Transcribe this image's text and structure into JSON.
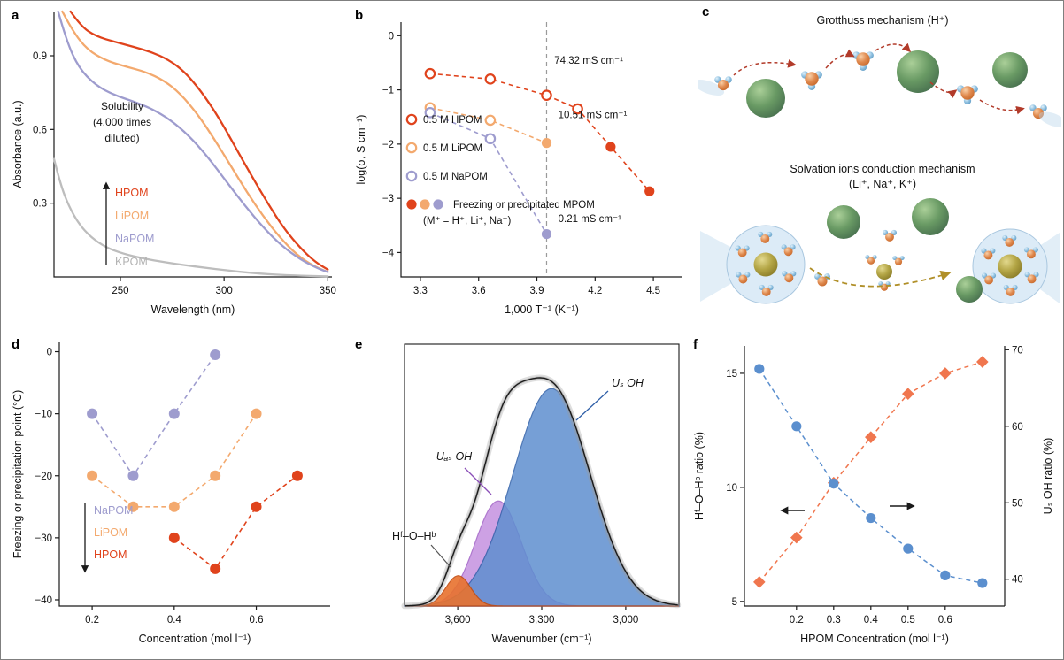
{
  "figure": {
    "background": "#ffffff",
    "border_color": "#7f7f7f"
  },
  "panels": {
    "a": {
      "label": "a"
    },
    "b": {
      "label": "b"
    },
    "c": {
      "label": "c",
      "grotthuss_title": "Grotthuss mechanism (H⁺)",
      "solvation_title_line1": "Solvation ions conduction mechanism",
      "solvation_title_line2": "(Li⁺, Na⁺, K⁺)"
    },
    "d": {
      "label": "d"
    },
    "e": {
      "label": "e"
    },
    "f": {
      "label": "f"
    }
  },
  "chart_data": [
    {
      "id": "a",
      "type": "line",
      "xlabel": "Wavelength (nm)",
      "ylabel": "Absorbance (a.u.)",
      "xlim": [
        218,
        352
      ],
      "ylim": [
        0,
        1.08
      ],
      "xticks": [
        250,
        300,
        350
      ],
      "xtick_labels": [
        "250",
        "300",
        "350"
      ],
      "yticks": [
        0.3,
        0.6,
        0.9
      ],
      "ytick_labels": [
        "0.3",
        "0.6",
        "0.9"
      ],
      "note_lines": [
        "Solubility",
        "(4,000 times",
        "diluted)"
      ],
      "legend_labels": [
        {
          "text": "HPOM",
          "color": "#e0431c"
        },
        {
          "text": "LiPOM",
          "color": "#f3a96e"
        },
        {
          "text": "NaPOM",
          "color": "#9e9cce"
        },
        {
          "text": "KPOM",
          "color": "#b3b3b3"
        }
      ],
      "series": [
        {
          "name": "HPOM",
          "color": "#e0431c",
          "points": [
            [
              226,
              1.08
            ],
            [
              231,
              1.02
            ],
            [
              238,
              0.98
            ],
            [
              248,
              0.955
            ],
            [
              257,
              0.935
            ],
            [
              265,
              0.915
            ],
            [
              273,
              0.885
            ],
            [
              281,
              0.835
            ],
            [
              289,
              0.755
            ],
            [
              297,
              0.655
            ],
            [
              305,
              0.535
            ],
            [
              313,
              0.415
            ],
            [
              321,
              0.3
            ],
            [
              329,
              0.195
            ],
            [
              337,
              0.115
            ],
            [
              344,
              0.06
            ],
            [
              350,
              0.03
            ]
          ]
        },
        {
          "name": "LiPOM",
          "color": "#f3a96e",
          "points": [
            [
              222,
              1.08
            ],
            [
              227,
              1.0
            ],
            [
              234,
              0.925
            ],
            [
              243,
              0.88
            ],
            [
              253,
              0.855
            ],
            [
              262,
              0.835
            ],
            [
              271,
              0.8
            ],
            [
              279,
              0.745
            ],
            [
              287,
              0.665
            ],
            [
              295,
              0.565
            ],
            [
              303,
              0.455
            ],
            [
              311,
              0.345
            ],
            [
              319,
              0.245
            ],
            [
              327,
              0.16
            ],
            [
              335,
              0.09
            ],
            [
              343,
              0.045
            ],
            [
              350,
              0.02
            ]
          ]
        },
        {
          "name": "NaPOM",
          "color": "#9e9cce",
          "points": [
            [
              220,
              1.08
            ],
            [
              224,
              0.96
            ],
            [
              230,
              0.85
            ],
            [
              238,
              0.78
            ],
            [
              247,
              0.74
            ],
            [
              256,
              0.715
            ],
            [
              265,
              0.685
            ],
            [
              274,
              0.64
            ],
            [
              283,
              0.575
            ],
            [
              292,
              0.49
            ],
            [
              301,
              0.39
            ],
            [
              310,
              0.29
            ],
            [
              319,
              0.2
            ],
            [
              328,
              0.125
            ],
            [
              337,
              0.07
            ],
            [
              345,
              0.035
            ],
            [
              350,
              0.02
            ]
          ]
        },
        {
          "name": "KPOM",
          "color": "#bdbdbd",
          "points": [
            [
              218,
              0.48
            ],
            [
              221,
              0.38
            ],
            [
              225,
              0.29
            ],
            [
              230,
              0.215
            ],
            [
              236,
              0.16
            ],
            [
              243,
              0.12
            ],
            [
              251,
              0.095
            ],
            [
              261,
              0.075
            ],
            [
              271,
              0.06
            ],
            [
              281,
              0.048
            ],
            [
              291,
              0.037
            ],
            [
              301,
              0.027
            ],
            [
              311,
              0.018
            ],
            [
              321,
              0.011
            ],
            [
              333,
              0.006
            ],
            [
              350,
              0.002
            ]
          ]
        }
      ]
    },
    {
      "id": "b",
      "type": "scatter",
      "xlabel": "1,000 T⁻¹ (K⁻¹)",
      "ylabel": "log(σ, S cm⁻¹)",
      "xlim": [
        3.2,
        4.65
      ],
      "ylim": [
        -4.45,
        0.25
      ],
      "xticks": [
        3.3,
        3.6,
        3.9,
        4.2,
        4.5
      ],
      "xtick_labels": [
        "3.3",
        "3.6",
        "3.9",
        "4.2",
        "4.5"
      ],
      "yticks": [
        0,
        -1,
        -2,
        -3,
        -4
      ],
      "ytick_labels": [
        "0",
        "−1",
        "−2",
        "−3",
        "−4"
      ],
      "vline_x": 3.95,
      "series": [
        {
          "name": "0.5 M HPOM",
          "color": "#e0431c",
          "open_points": [
            [
              3.35,
              -0.7
            ],
            [
              3.66,
              -0.8
            ],
            [
              3.95,
              -1.1
            ],
            [
              4.11,
              -1.35
            ]
          ],
          "filled_points": [
            [
              4.28,
              -2.05
            ],
            [
              4.48,
              -2.87
            ]
          ]
        },
        {
          "name": "0.5 M LiPOM",
          "color": "#f3a96e",
          "open_points": [
            [
              3.35,
              -1.33
            ],
            [
              3.66,
              -1.56
            ]
          ],
          "filled_points": [
            [
              3.95,
              -1.98
            ]
          ]
        },
        {
          "name": "0.5 M NaPOM",
          "color": "#9e9cce",
          "open_points": [
            [
              3.35,
              -1.42
            ],
            [
              3.66,
              -1.9
            ]
          ],
          "filled_points": [
            [
              3.95,
              -3.66
            ]
          ]
        }
      ],
      "annotations": [
        {
          "text": "74.32 mS cm⁻¹",
          "x": 3.99,
          "y": -0.52
        },
        {
          "text": "10.51 mS cm⁻¹",
          "x": 4.01,
          "y": -1.52
        },
        {
          "text": "0.21 mS cm⁻¹",
          "x": 4.01,
          "y": -3.44
        }
      ],
      "legend": {
        "open_items": [
          {
            "text": "0.5 M HPOM",
            "color": "#e0431c"
          },
          {
            "text": "0.5 M LiPOM",
            "color": "#f3a96e"
          },
          {
            "text": "0.5 M NaPOM",
            "color": "#9e9cce"
          }
        ],
        "filled_colors": [
          "#e0431c",
          "#f3a96e",
          "#9e9cce"
        ],
        "filled_text": "Freezing or precipitated MPOM",
        "filled_subtext": "(M⁺ = H⁺, Li⁺, Na⁺)"
      }
    },
    {
      "id": "d",
      "type": "scatter",
      "xlabel": "Concentration (mol l⁻¹)",
      "ylabel": "Freezing or precipitation point (°C)",
      "xlim": [
        0.12,
        0.78
      ],
      "ylim": [
        -41,
        1.5
      ],
      "xticks": [
        0.2,
        0.4,
        0.6
      ],
      "xtick_labels": [
        "0.2",
        "0.4",
        "0.6"
      ],
      "yticks": [
        0,
        -10,
        -20,
        -30,
        -40
      ],
      "ytick_labels": [
        "0",
        "−10",
        "−20",
        "−30",
        "−40"
      ],
      "legend_labels": [
        {
          "text": "NaPOM",
          "color": "#9e9cce"
        },
        {
          "text": "LiPOM",
          "color": "#f3a96e"
        },
        {
          "text": "HPOM",
          "color": "#e0431c"
        }
      ],
      "series": [
        {
          "name": "NaPOM",
          "color": "#9e9cce",
          "points": [
            [
              0.2,
              -10
            ],
            [
              0.3,
              -20
            ],
            [
              0.4,
              -10
            ],
            [
              0.5,
              -0.5
            ]
          ]
        },
        {
          "name": "LiPOM",
          "color": "#f3a96e",
          "points": [
            [
              0.2,
              -20
            ],
            [
              0.3,
              -25
            ],
            [
              0.4,
              -25
            ],
            [
              0.5,
              -20
            ],
            [
              0.6,
              -10
            ]
          ]
        },
        {
          "name": "HPOM",
          "color": "#e0431c",
          "points": [
            [
              0.4,
              -30
            ],
            [
              0.5,
              -35
            ],
            [
              0.6,
              -25
            ],
            [
              0.7,
              -20
            ]
          ]
        }
      ]
    },
    {
      "id": "e",
      "type": "area",
      "xlabel": "Wavenumber (cm⁻¹)",
      "xlim": [
        3790,
        2810
      ],
      "ylim": [
        0,
        1.12
      ],
      "xticks": [
        3600,
        3300,
        3000
      ],
      "xtick_labels": [
        "3,600",
        "3,300",
        "3,000"
      ],
      "yticks": [],
      "ytick_labels": [],
      "experimental_color": "#1a1a1a",
      "band_color": "#999999",
      "peaks": [
        {
          "name": "Uₐₛ OH",
          "center": 3455,
          "sigma": 82,
          "amplitude": 0.45,
          "fill": "#c18ade",
          "stroke": "#9a56c2",
          "opacity": 0.8
        },
        {
          "name": "Uₛ OH",
          "center": 3265,
          "sigma": 138,
          "amplitude": 0.93,
          "fill": "#5f8fd0",
          "stroke": "#2f5fa8",
          "opacity": 0.85
        },
        {
          "name": "Hᶠ–O–Hᵇ",
          "center": 3598,
          "sigma": 44,
          "amplitude": 0.13,
          "fill": "#e8722e",
          "stroke": "#c24c12",
          "opacity": 0.9
        }
      ],
      "labels": [
        {
          "text": "Uₛ OH",
          "color": "#2f5fa8"
        },
        {
          "text": "Uₐₛ OH",
          "color": "#8b4fb8"
        },
        {
          "text": "Hᶠ–O–Hᵇ",
          "color": "#333333"
        }
      ]
    },
    {
      "id": "f",
      "type": "scatter",
      "xlabel": "HPOM Concentration (mol l⁻¹)",
      "ylabel_left": "Hᶠ–O–Hᵇ ratio (%)",
      "ylabel_right": "Uₛ OH ratio (%)",
      "xlim": [
        0.06,
        0.76
      ],
      "xticks": [
        0.2,
        0.3,
        0.4,
        0.5,
        0.6
      ],
      "xtick_labels": [
        "0.2",
        "0.3",
        "0.4",
        "0.5",
        "0.6"
      ],
      "ylim_left": [
        4.8,
        16.2
      ],
      "yticks_left": [
        5,
        10,
        15
      ],
      "ytick_labels_left": [
        "5",
        "10",
        "15"
      ],
      "ylim_right": [
        36.5,
        70.5
      ],
      "yticks_right": [
        40,
        50,
        60,
        70
      ],
      "ytick_labels_right": [
        "40",
        "50",
        "60",
        "70"
      ],
      "series": [
        {
          "name": "Hᶠ–O–Hᵇ ratio",
          "axis": "left",
          "marker": "diamond",
          "color": "#f0764e",
          "points": [
            [
              0.1,
              5.85
            ],
            [
              0.2,
              7.8
            ],
            [
              0.3,
              10.2
            ],
            [
              0.4,
              12.2
            ],
            [
              0.5,
              14.1
            ],
            [
              0.6,
              15.0
            ],
            [
              0.7,
              15.5
            ]
          ]
        },
        {
          "name": "Uₛ OH ratio",
          "axis": "right",
          "marker": "circle",
          "color": "#5b8fce",
          "points": [
            [
              0.1,
              67.5
            ],
            [
              0.2,
              60.0
            ],
            [
              0.3,
              52.5
            ],
            [
              0.4,
              48.0
            ],
            [
              0.5,
              44.0
            ],
            [
              0.6,
              40.5
            ],
            [
              0.7,
              39.5
            ]
          ]
        }
      ]
    }
  ]
}
